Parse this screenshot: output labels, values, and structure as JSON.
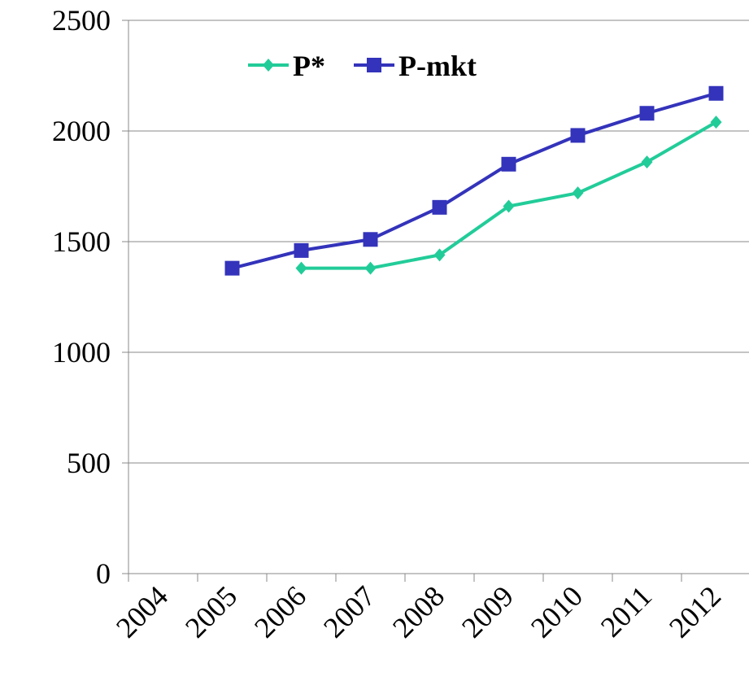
{
  "chart_data": {
    "type": "line",
    "categories": [
      "2004",
      "2005",
      "2006",
      "2007",
      "2008",
      "2009",
      "2010",
      "2011",
      "2012"
    ],
    "series": [
      {
        "name": "P*",
        "color": "#22cc99",
        "marker": "diamond",
        "values": [
          null,
          null,
          1380,
          1380,
          1440,
          1660,
          1720,
          1860,
          2040
        ]
      },
      {
        "name": "P-mkt",
        "color": "#3333bb",
        "marker": "square",
        "values": [
          null,
          1380,
          1460,
          1510,
          1655,
          1850,
          1980,
          2080,
          2170
        ]
      }
    ],
    "ylim": [
      0,
      2500
    ],
    "yticks": [
      0,
      500,
      1000,
      1500,
      2000,
      2500
    ],
    "grid": true,
    "legend": "top"
  }
}
